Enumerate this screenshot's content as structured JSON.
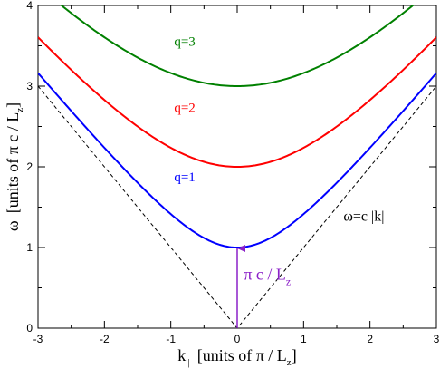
{
  "chart_data": {
    "type": "line",
    "xlabel": {
      "symbol": "k",
      "subscript": "||",
      "text": "[units of π / L",
      "text_subscript": "z",
      "text_end": "]"
    },
    "ylabel": {
      "symbol": "ω",
      "text": "[units of π c / L",
      "text_subscript": "z",
      "text_end": "]"
    },
    "xlim": [
      -3,
      3
    ],
    "ylim": [
      0,
      4
    ],
    "xticks": [
      "-3",
      "-2",
      "-1",
      "0",
      "1",
      "2",
      "3"
    ],
    "yticks": [
      "0",
      "1",
      "2",
      "3",
      "4"
    ],
    "grid": false,
    "series": [
      {
        "name": "q=1",
        "q": 1,
        "color": "#0000ff",
        "label_at": [
          -0.95,
          1.82
        ]
      },
      {
        "name": "q=2",
        "q": 2,
        "color": "#ff0000",
        "label_at": [
          -0.95,
          2.68
        ]
      },
      {
        "name": "q=3",
        "q": 3,
        "color": "#008000",
        "label_at": [
          -0.95,
          3.5
        ]
      }
    ],
    "light_cone": {
      "label": "ω=c |k|",
      "color": "#000000",
      "dashed": true,
      "label_at": [
        1.6,
        1.33
      ]
    },
    "gap_arrow": {
      "from": [
        0,
        0
      ],
      "to": [
        0,
        1
      ],
      "color": "#8b20c8",
      "label": "π c / L",
      "label_subscript": "z",
      "label_at": [
        0.1,
        0.6
      ]
    }
  }
}
